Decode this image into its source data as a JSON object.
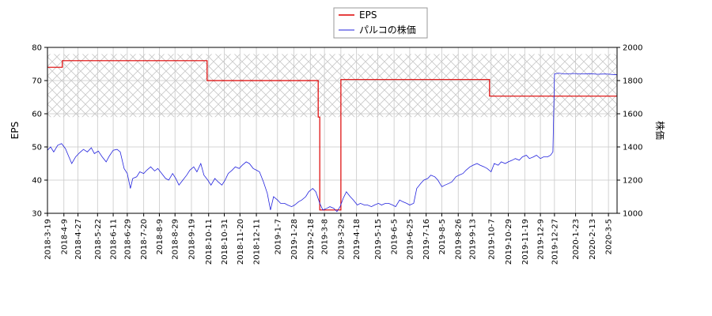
{
  "chart_data": {
    "type": "line",
    "title": "",
    "ylabel_left": "EPS",
    "ylabel_right": "株価",
    "ylim_left": [
      30,
      80
    ],
    "ylim_right": [
      1000,
      2000
    ],
    "yticks_left": [
      "30",
      "40",
      "50",
      "60",
      "70",
      "80"
    ],
    "yticks_right": [
      "1000",
      "1200",
      "1400",
      "1600",
      "1800",
      "2000"
    ],
    "x_start": "2018-03-19",
    "x_end": "2020-03-16",
    "xticks": [
      "2018-3-19",
      "2018-4-9",
      "2018-4-27",
      "2018-5-22",
      "2018-6-11",
      "2018-6-29",
      "2018-7-20",
      "2018-8-9",
      "2018-8-29",
      "2018-9-19",
      "2018-10-11",
      "2018-10-31",
      "2018-11-20",
      "2018-12-11",
      "2019-1-7",
      "2019-1-28",
      "2019-2-18",
      "2019-3-8",
      "2019-3-29",
      "2019-4-18",
      "2019-5-15",
      "2019-6-5",
      "2019-6-25",
      "2019-7-16",
      "2019-8-5",
      "2019-8-26",
      "2019-9-13",
      "2019-10-7",
      "2019-10-29",
      "2019-11-19",
      "2019-12-9",
      "2019-12-27",
      "2020-1-23",
      "2020-2-13",
      "2020-3-5"
    ],
    "grid": true,
    "hatched_band_left": [
      59,
      78
    ],
    "legend_position": "top-center",
    "series": [
      {
        "name": "EPS",
        "axis": "left",
        "color": "#dd0000",
        "step": true,
        "points": [
          [
            "2018-03-19",
            74
          ],
          [
            "2018-04-07",
            76
          ],
          [
            "2018-10-09",
            70
          ],
          [
            "2019-02-28",
            59
          ],
          [
            "2019-03-02",
            31
          ],
          [
            "2019-03-28",
            31
          ],
          [
            "2019-03-29",
            70.3
          ],
          [
            "2019-10-05",
            65.3
          ],
          [
            "2020-03-16",
            65.3
          ]
        ]
      },
      {
        "name": "パルコの株価",
        "axis": "right",
        "color": "#2222dd",
        "points": [
          [
            "2018-03-19",
            1380
          ],
          [
            "2018-03-23",
            1400
          ],
          [
            "2018-03-27",
            1370
          ],
          [
            "2018-04-01",
            1410
          ],
          [
            "2018-04-06",
            1420
          ],
          [
            "2018-04-11",
            1390
          ],
          [
            "2018-04-15",
            1345
          ],
          [
            "2018-04-19",
            1300
          ],
          [
            "2018-04-24",
            1340
          ],
          [
            "2018-04-29",
            1365
          ],
          [
            "2018-05-04",
            1385
          ],
          [
            "2018-05-09",
            1370
          ],
          [
            "2018-05-14",
            1395
          ],
          [
            "2018-05-18",
            1360
          ],
          [
            "2018-05-23",
            1375
          ],
          [
            "2018-05-28",
            1340
          ],
          [
            "2018-06-02",
            1310
          ],
          [
            "2018-06-06",
            1345
          ],
          [
            "2018-06-11",
            1380
          ],
          [
            "2018-06-16",
            1385
          ],
          [
            "2018-06-20",
            1370
          ],
          [
            "2018-06-25",
            1270
          ],
          [
            "2018-06-29",
            1240
          ],
          [
            "2018-07-03",
            1150
          ],
          [
            "2018-07-06",
            1210
          ],
          [
            "2018-07-11",
            1220
          ],
          [
            "2018-07-15",
            1250
          ],
          [
            "2018-07-20",
            1240
          ],
          [
            "2018-07-24",
            1260
          ],
          [
            "2018-07-29",
            1280
          ],
          [
            "2018-08-03",
            1255
          ],
          [
            "2018-08-07",
            1270
          ],
          [
            "2018-08-12",
            1240
          ],
          [
            "2018-08-17",
            1210
          ],
          [
            "2018-08-21",
            1200
          ],
          [
            "2018-08-26",
            1240
          ],
          [
            "2018-08-30",
            1210
          ],
          [
            "2018-09-03",
            1170
          ],
          [
            "2018-09-08",
            1200
          ],
          [
            "2018-09-13",
            1230
          ],
          [
            "2018-09-17",
            1260
          ],
          [
            "2018-09-22",
            1280
          ],
          [
            "2018-09-26",
            1250
          ],
          [
            "2018-10-01",
            1300
          ],
          [
            "2018-10-05",
            1230
          ],
          [
            "2018-10-10",
            1200
          ],
          [
            "2018-10-14",
            1170
          ],
          [
            "2018-10-19",
            1210
          ],
          [
            "2018-10-23",
            1190
          ],
          [
            "2018-10-28",
            1170
          ],
          [
            "2018-11-01",
            1200
          ],
          [
            "2018-11-05",
            1240
          ],
          [
            "2018-11-10",
            1260
          ],
          [
            "2018-11-14",
            1280
          ],
          [
            "2018-11-19",
            1270
          ],
          [
            "2018-11-23",
            1290
          ],
          [
            "2018-11-28",
            1310
          ],
          [
            "2018-12-02",
            1300
          ],
          [
            "2018-12-07",
            1270
          ],
          [
            "2018-12-11",
            1260
          ],
          [
            "2018-12-15",
            1250
          ],
          [
            "2018-12-20",
            1190
          ],
          [
            "2018-12-25",
            1120
          ],
          [
            "2018-12-29",
            1020
          ],
          [
            "2019-01-02",
            1100
          ],
          [
            "2019-01-07",
            1080
          ],
          [
            "2019-01-11",
            1060
          ],
          [
            "2019-01-16",
            1060
          ],
          [
            "2019-01-20",
            1050
          ],
          [
            "2019-01-25",
            1040
          ],
          [
            "2019-01-29",
            1050
          ],
          [
            "2019-02-03",
            1070
          ],
          [
            "2019-02-07",
            1080
          ],
          [
            "2019-02-12",
            1100
          ],
          [
            "2019-02-16",
            1130
          ],
          [
            "2019-02-21",
            1150
          ],
          [
            "2019-02-25",
            1130
          ],
          [
            "2019-03-02",
            1060
          ],
          [
            "2019-03-06",
            1020
          ],
          [
            "2019-03-11",
            1030
          ],
          [
            "2019-03-15",
            1040
          ],
          [
            "2019-03-20",
            1030
          ],
          [
            "2019-03-24",
            1010
          ],
          [
            "2019-03-28",
            1040
          ],
          [
            "2019-04-01",
            1090
          ],
          [
            "2019-04-05",
            1130
          ],
          [
            "2019-04-10",
            1100
          ],
          [
            "2019-04-14",
            1080
          ],
          [
            "2019-04-19",
            1050
          ],
          [
            "2019-04-23",
            1060
          ],
          [
            "2019-04-28",
            1050
          ],
          [
            "2019-05-02",
            1050
          ],
          [
            "2019-05-07",
            1040
          ],
          [
            "2019-05-11",
            1050
          ],
          [
            "2019-05-16",
            1060
          ],
          [
            "2019-05-20",
            1050
          ],
          [
            "2019-05-25",
            1060
          ],
          [
            "2019-05-29",
            1060
          ],
          [
            "2019-06-03",
            1050
          ],
          [
            "2019-06-07",
            1040
          ],
          [
            "2019-06-12",
            1080
          ],
          [
            "2019-06-16",
            1070
          ],
          [
            "2019-06-21",
            1060
          ],
          [
            "2019-06-25",
            1050
          ],
          [
            "2019-06-30",
            1060
          ],
          [
            "2019-07-04",
            1150
          ],
          [
            "2019-07-09",
            1180
          ],
          [
            "2019-07-13",
            1200
          ],
          [
            "2019-07-18",
            1210
          ],
          [
            "2019-07-22",
            1230
          ],
          [
            "2019-07-27",
            1220
          ],
          [
            "2019-07-31",
            1200
          ],
          [
            "2019-08-05",
            1160
          ],
          [
            "2019-08-09",
            1170
          ],
          [
            "2019-08-14",
            1180
          ],
          [
            "2019-08-18",
            1190
          ],
          [
            "2019-08-23",
            1220
          ],
          [
            "2019-08-27",
            1230
          ],
          [
            "2019-09-01",
            1240
          ],
          [
            "2019-09-05",
            1260
          ],
          [
            "2019-09-10",
            1280
          ],
          [
            "2019-09-14",
            1290
          ],
          [
            "2019-09-19",
            1300
          ],
          [
            "2019-09-23",
            1290
          ],
          [
            "2019-09-28",
            1280
          ],
          [
            "2019-10-02",
            1270
          ],
          [
            "2019-10-07",
            1250
          ],
          [
            "2019-10-11",
            1300
          ],
          [
            "2019-10-16",
            1290
          ],
          [
            "2019-10-20",
            1310
          ],
          [
            "2019-10-25",
            1300
          ],
          [
            "2019-10-29",
            1310
          ],
          [
            "2019-11-03",
            1320
          ],
          [
            "2019-11-07",
            1330
          ],
          [
            "2019-11-12",
            1320
          ],
          [
            "2019-11-16",
            1340
          ],
          [
            "2019-11-21",
            1350
          ],
          [
            "2019-11-25",
            1330
          ],
          [
            "2019-11-30",
            1340
          ],
          [
            "2019-12-04",
            1350
          ],
          [
            "2019-12-09",
            1330
          ],
          [
            "2019-12-13",
            1340
          ],
          [
            "2019-12-18",
            1340
          ],
          [
            "2019-12-22",
            1350
          ],
          [
            "2019-12-25",
            1370
          ],
          [
            "2019-12-27",
            1840
          ],
          [
            "2020-01-01",
            1845
          ],
          [
            "2020-01-10",
            1840
          ],
          [
            "2020-01-20",
            1843
          ],
          [
            "2020-01-30",
            1840
          ],
          [
            "2020-02-10",
            1842
          ],
          [
            "2020-02-20",
            1838
          ],
          [
            "2020-03-01",
            1840
          ],
          [
            "2020-03-16",
            1835
          ]
        ]
      }
    ]
  }
}
